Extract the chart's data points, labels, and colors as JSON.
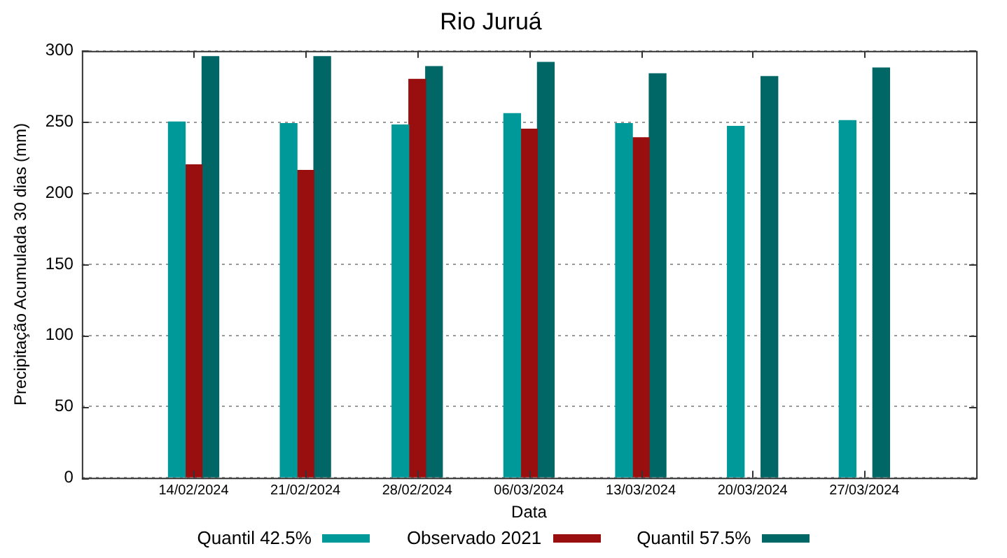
{
  "chart_data": {
    "type": "bar",
    "title": "Rio Juruá",
    "xlabel": "Data",
    "ylabel": "Precipitação Acumulada 30 dias (mm)",
    "categories": [
      "14/02/2024",
      "21/02/2024",
      "28/02/2024",
      "06/03/2024",
      "13/03/2024",
      "20/03/2024",
      "27/03/2024"
    ],
    "series": [
      {
        "name": "Quantil 42.5%",
        "color": "#009999",
        "values": [
          250,
          249,
          248,
          256,
          249,
          247,
          251
        ]
      },
      {
        "name": "Observado 2021",
        "color": "#990f0f",
        "values": [
          220,
          216,
          280,
          245,
          239,
          null,
          null
        ]
      },
      {
        "name": "Quantil 57.5%",
        "color": "#006666",
        "values": [
          296,
          296,
          289,
          292,
          284,
          282,
          288
        ]
      }
    ],
    "ylim": [
      0,
      300
    ],
    "yticks": [
      0,
      50,
      100,
      150,
      200,
      250,
      300
    ],
    "grid": "y",
    "legend": "bottom"
  }
}
